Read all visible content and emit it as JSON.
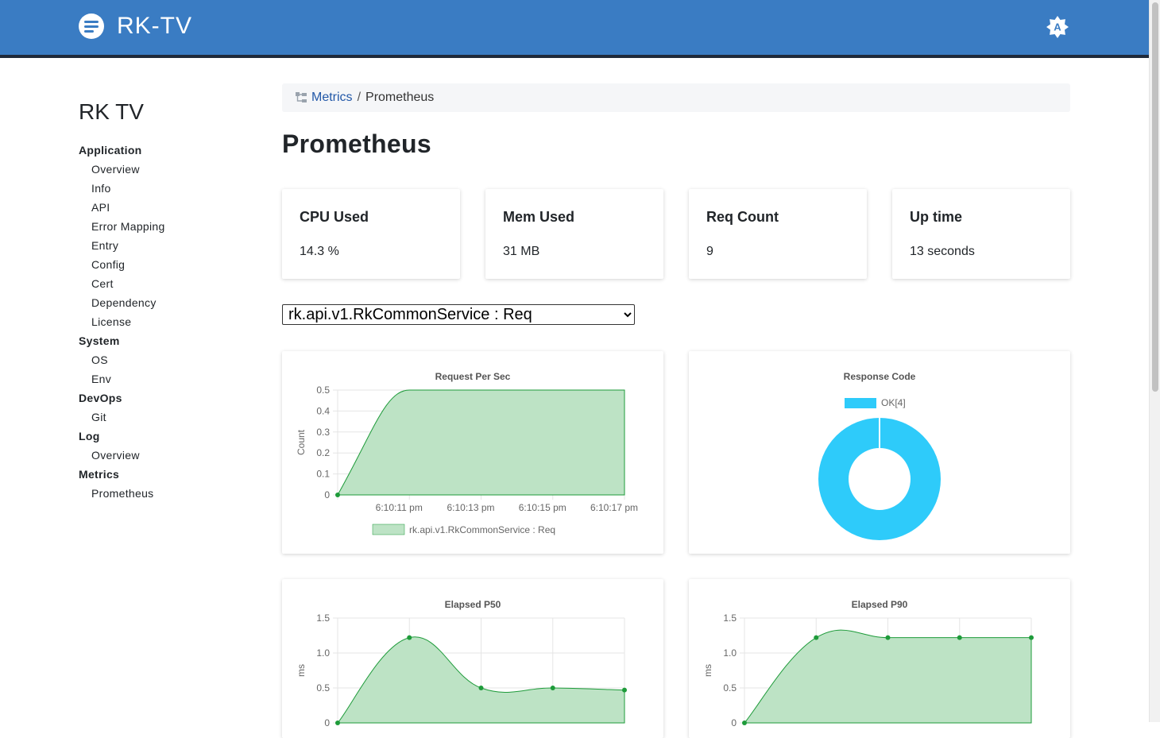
{
  "header": {
    "app_title": "RK-TV",
    "menu_icon": "menu-icon",
    "theme_icon": "theme-toggle-icon",
    "theme_glyph": "A",
    "bar_color": "#3a7cc3"
  },
  "sidebar": {
    "title": "RK TV",
    "groups": [
      {
        "label": "Application",
        "items": [
          "Overview",
          "Info",
          "API",
          "Error Mapping",
          "Entry",
          "Config",
          "Cert",
          "Dependency",
          "License"
        ]
      },
      {
        "label": "System",
        "items": [
          "OS",
          "Env"
        ]
      },
      {
        "label": "DevOps",
        "items": [
          "Git"
        ]
      },
      {
        "label": "Log",
        "items": [
          "Overview"
        ]
      },
      {
        "label": "Metrics",
        "items": [
          "Prometheus"
        ]
      }
    ]
  },
  "breadcrumb": {
    "icon": "sitemap-icon",
    "link": "Metrics",
    "separator": "/",
    "current": "Prometheus"
  },
  "page": {
    "title": "Prometheus"
  },
  "stats": [
    {
      "label": "CPU Used",
      "value": "14.3 %"
    },
    {
      "label": "Mem Used",
      "value": "31 MB"
    },
    {
      "label": "Req Count",
      "value": "9"
    },
    {
      "label": "Up time",
      "value": "13 seconds"
    }
  ],
  "selector": {
    "selected": "rk.api.v1.RkCommonService : Req"
  },
  "chart_data": [
    {
      "type": "area",
      "title": "Request Per Sec",
      "ylabel": "Count",
      "ylim": [
        0,
        0.5
      ],
      "yticks": [
        "0",
        "0.1",
        "0.2",
        "0.3",
        "0.4",
        "0.5"
      ],
      "xticks": [
        "6:10:11 pm",
        "6:10:13 pm",
        "6:10:15 pm",
        "6:10:17 pm"
      ],
      "series": [
        {
          "name": "rk.api.v1.RkCommonService : Req",
          "values": [
            0,
            0.5,
            0.5,
            0.5,
            0.5
          ],
          "color": "#1e9b3a",
          "fill": "#bde3c5"
        }
      ]
    },
    {
      "type": "pie",
      "title": "Response Code",
      "legend": [
        "OK[4]"
      ],
      "values": [
        4
      ],
      "colors": [
        "#2ecbfa"
      ]
    },
    {
      "type": "area",
      "title": "Elapsed P50",
      "ylabel": "ms",
      "ylim": [
        0,
        1.5
      ],
      "yticks": [
        "0",
        "0.5",
        "1.0",
        "1.5"
      ],
      "series": [
        {
          "values": [
            0,
            1.22,
            0.5,
            0.5,
            0.47
          ],
          "color": "#1e9b3a",
          "fill": "#bde3c5"
        }
      ]
    },
    {
      "type": "area",
      "title": "Elapsed P90",
      "ylabel": "ms",
      "ylim": [
        0,
        1.5
      ],
      "yticks": [
        "0",
        "0.5",
        "1.0",
        "1.5"
      ],
      "series": [
        {
          "values": [
            0,
            1.22,
            1.22,
            1.22,
            1.22
          ],
          "color": "#1e9b3a",
          "fill": "#bde3c5"
        }
      ]
    }
  ]
}
